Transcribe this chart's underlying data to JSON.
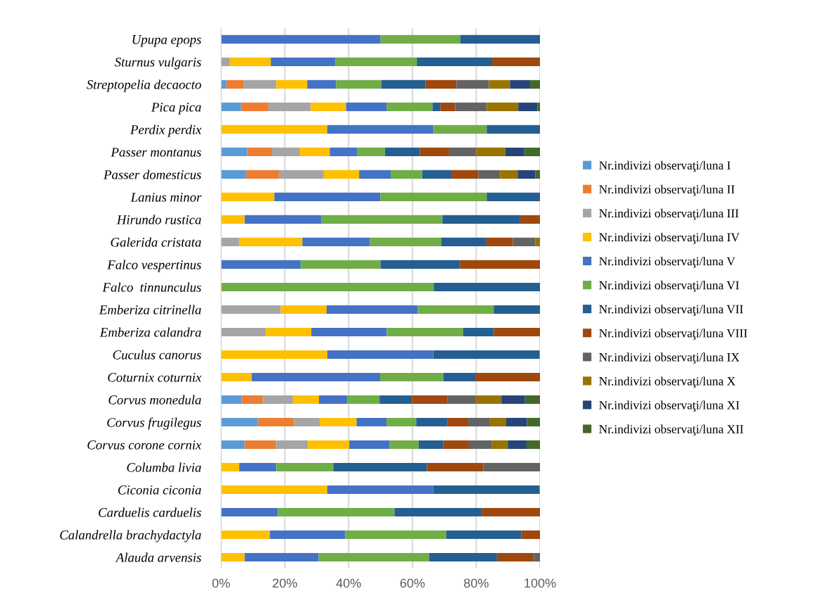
{
  "chart_data": {
    "type": "bar",
    "orientation": "horizontal",
    "stacked": true,
    "categories": [
      "Upupa epops",
      "Sturnus vulgaris",
      "Streptopelia decaocto",
      "Pica pica",
      "Perdix perdix",
      "Passer montanus",
      "Passer domesticus",
      "Lanius minor",
      "Hirundo rustica",
      "Galerida cristata",
      "Falco vespertinus",
      "Falco  tinnunculus",
      "Emberiza citrinella",
      "Emberiza calandra",
      "Cuculus canorus",
      "Coturnix coturnix",
      "Corvus monedula",
      "Corvus frugilegus",
      "Corvus corone cornix",
      "Columba livia",
      "Ciconia ciconia",
      "Carduelis carduelis",
      "Calandrella brachydactyla",
      "Alauda arvensis"
    ],
    "series": [
      {
        "name": "Nr.indivizi observaţi/luna I",
        "color": "#5b9bd5",
        "values": [
          null,
          null,
          1.7,
          6.3,
          null,
          8.3,
          7.9,
          null,
          null,
          null,
          null,
          null,
          null,
          null,
          null,
          null,
          6.5,
          11.6,
          7.4,
          null,
          null,
          null,
          null,
          null
        ]
      },
      {
        "name": "Nr.indivizi observaţi/luna II",
        "color": "#ed7d31",
        "values": [
          null,
          null,
          5.4,
          8.5,
          null,
          7.6,
          10.2,
          null,
          null,
          null,
          null,
          null,
          null,
          null,
          null,
          null,
          6.6,
          11.3,
          9.9,
          null,
          null,
          null,
          null,
          null
        ]
      },
      {
        "name": "Nr.indivizi observaţi/luna III",
        "color": "#a5a5a5",
        "values": [
          null,
          2.8,
          10.2,
          13.3,
          null,
          8.8,
          14.1,
          null,
          null,
          5.7,
          null,
          null,
          18.7,
          13.9,
          null,
          null,
          9.4,
          8.0,
          9.9,
          null,
          null,
          null,
          null,
          null
        ]
      },
      {
        "name": "Nr.indivizi observaţi/luna IV",
        "color": "#ffc000",
        "values": [
          null,
          12.8,
          9.7,
          11.1,
          33.3,
          9.4,
          11.1,
          16.7,
          7.4,
          19.8,
          null,
          null,
          14.4,
          14.4,
          33.3,
          9.6,
          8.2,
          11.6,
          13.0,
          5.7,
          33.3,
          null,
          15.3,
          7.4
        ]
      },
      {
        "name": "Nr.indivizi observaţi/luna V",
        "color": "#4472c4",
        "values": [
          50,
          20.3,
          9.1,
          12.7,
          33.3,
          8.5,
          9.9,
          33.3,
          24.1,
          21.2,
          25,
          null,
          28.6,
          23.7,
          33.3,
          40.3,
          8.8,
          9.4,
          12.7,
          11.6,
          33.3,
          17.8,
          23.6,
          23.2
        ]
      },
      {
        "name": "Nr.indivizi observaţi/luna VI",
        "color": "#70ad47",
        "values": [
          25,
          25.5,
          14.1,
          14.4,
          16.7,
          8.8,
          9.9,
          33.3,
          37.9,
          22.4,
          25,
          66.7,
          23.8,
          23.9,
          null,
          19.8,
          10.2,
          9.3,
          9.1,
          17.9,
          null,
          36.6,
          31.7,
          34.6
        ]
      },
      {
        "name": "Nr.indivizi observaţi/luna VII",
        "color": "#255e91",
        "values": [
          25,
          23.6,
          13.9,
          2.5,
          16.7,
          11.0,
          9.1,
          16.7,
          24.4,
          14.1,
          25,
          33.3,
          14.5,
          9.6,
          33.3,
          10.2,
          10.2,
          9.7,
          7.7,
          29.4,
          33.3,
          27.3,
          23.6,
          21.3
        ]
      },
      {
        "name": "Nr.indivizi observaţi/luna VIII",
        "color": "#9e480e",
        "values": [
          null,
          15.0,
          9.7,
          4.6,
          null,
          9.1,
          8.5,
          null,
          6.2,
          8.3,
          25,
          null,
          null,
          14.5,
          null,
          20.1,
          11.0,
          6.6,
          8.0,
          17.6,
          null,
          18.3,
          5.9,
          11.6
        ]
      },
      {
        "name": "Nr.indivizi observaţi/luna IX",
        "color": "#636363",
        "values": [
          null,
          null,
          10.2,
          9.9,
          null,
          8.5,
          6.8,
          null,
          null,
          7.1,
          null,
          null,
          null,
          null,
          null,
          null,
          8.8,
          6.8,
          7.1,
          17.8,
          null,
          null,
          null,
          1.9
        ]
      },
      {
        "name": "Nr.indivizi observaţi/luna X",
        "color": "#997300",
        "values": [
          null,
          null,
          6.6,
          9.9,
          null,
          9.1,
          5.5,
          null,
          null,
          1.4,
          null,
          null,
          null,
          null,
          null,
          null,
          8.2,
          5.1,
          5.1,
          null,
          null,
          null,
          null,
          null
        ]
      },
      {
        "name": "Nr.indivizi observaţi/luna XI",
        "color": "#264478",
        "values": [
          null,
          null,
          6.3,
          6.0,
          null,
          6.0,
          5.6,
          null,
          null,
          null,
          null,
          null,
          null,
          null,
          null,
          null,
          7.4,
          6.5,
          5.9,
          null,
          null,
          null,
          null,
          null
        ]
      },
      {
        "name": "Nr.indivizi observaţi/luna XII",
        "color": "#43682b",
        "values": [
          null,
          null,
          3.1,
          0.8,
          null,
          4.9,
          1.4,
          null,
          null,
          null,
          null,
          null,
          null,
          null,
          null,
          null,
          4.8,
          4.1,
          4.3,
          null,
          null,
          null,
          null,
          null
        ]
      }
    ],
    "xlim": [
      0,
      100
    ],
    "xticks": [
      {
        "value": 0,
        "label": "0%"
      },
      {
        "value": 20,
        "label": "20%"
      },
      {
        "value": 40,
        "label": "40%"
      },
      {
        "value": 60,
        "label": "60%"
      },
      {
        "value": 80,
        "label": "80%"
      },
      {
        "value": 100,
        "label": "100%"
      }
    ],
    "grid": "x",
    "legend": "right"
  }
}
